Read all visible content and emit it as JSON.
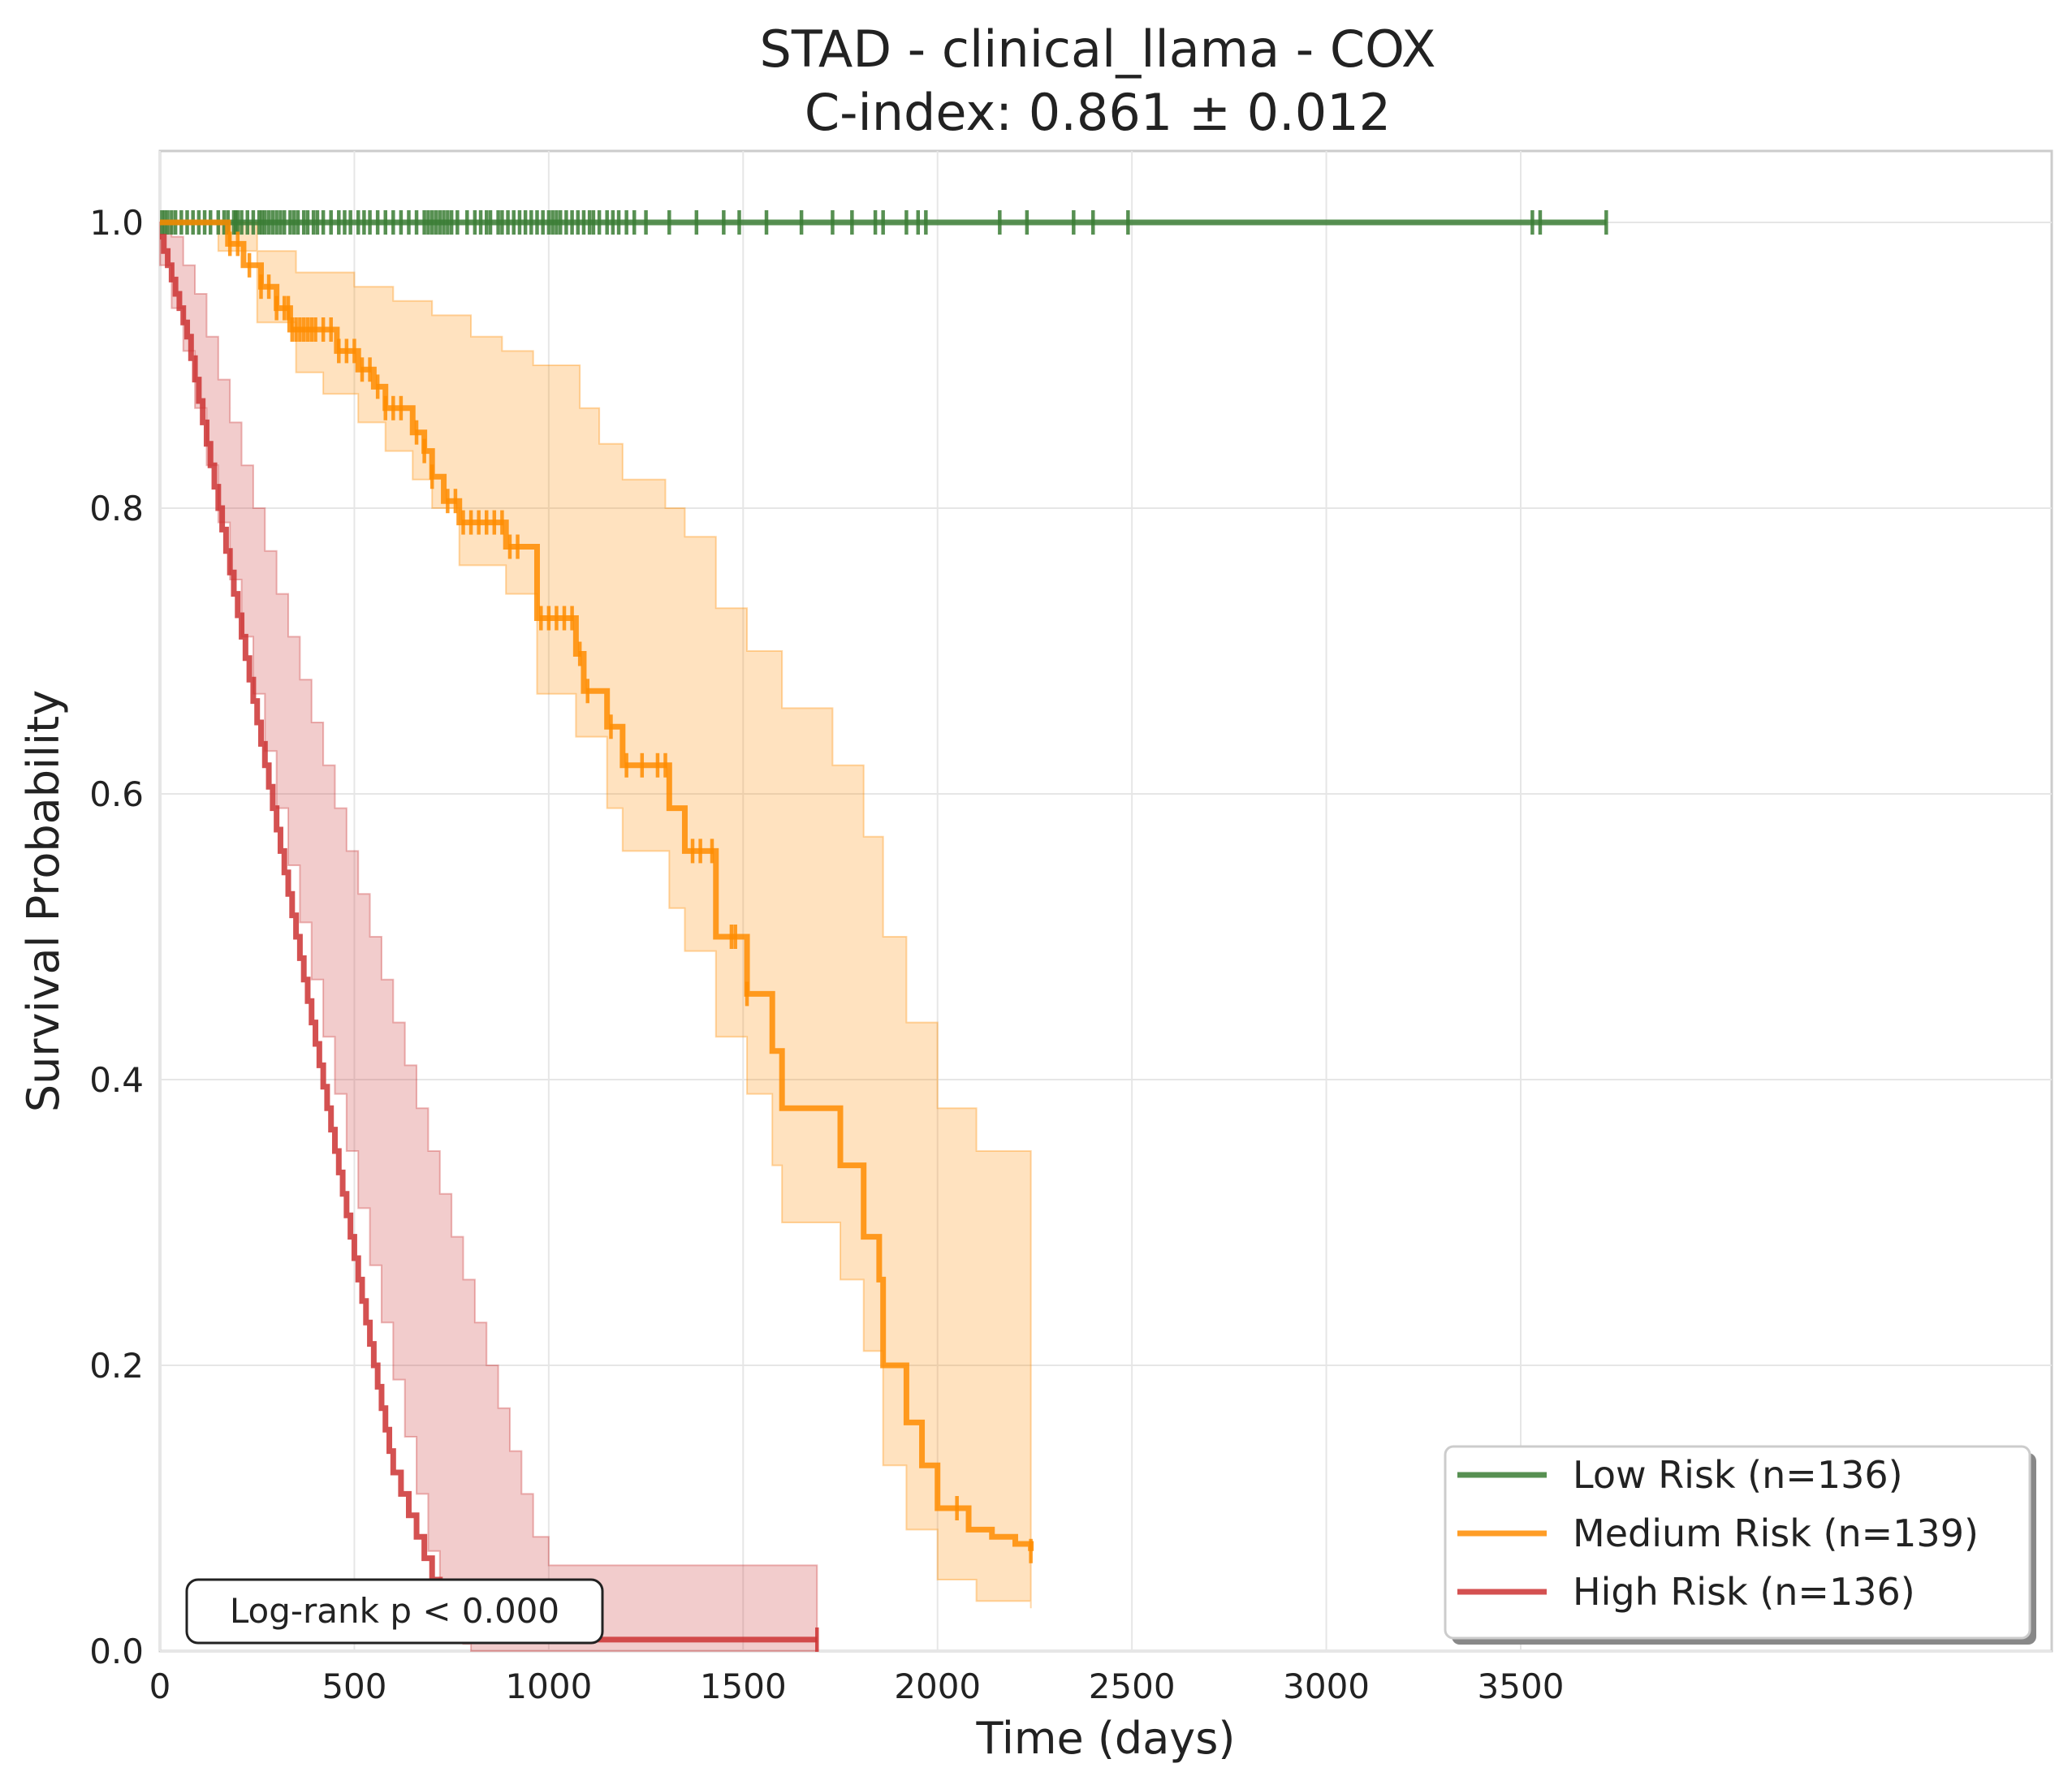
{
  "chart_data": {
    "type": "line",
    "title": "STAD - clinical_llama - COX",
    "subtitle": "C-index: 0.861 ± 0.012",
    "xlabel": "Time (days)",
    "ylabel": "Survival Probability",
    "xlim": [
      0,
      3900
    ],
    "ylim": [
      0.0,
      1.05
    ],
    "xticks": [
      0,
      500,
      1000,
      1500,
      2000,
      2500,
      3000,
      3500
    ],
    "yticks": [
      0.0,
      0.2,
      0.4,
      0.6,
      0.8,
      1.0
    ],
    "xtick_labels": [
      "0",
      "500",
      "1000",
      "1500",
      "2000",
      "2500",
      "3000",
      "3500"
    ],
    "ytick_labels": [
      "0.0",
      "0.2",
      "0.4",
      "0.6",
      "0.8",
      "1.0"
    ],
    "grid": true,
    "legend_position": "lower-right",
    "annotation": "Log-rank p < 0.000",
    "series": [
      {
        "name": "Low Risk (n=136)",
        "color": "#3a7d34",
        "steps": [
          [
            0,
            1.0
          ],
          [
            3720,
            1.0
          ]
        ],
        "ci_upper": [],
        "ci_lower": [],
        "censor": [
          5,
          12,
          20,
          30,
          40,
          55,
          70,
          85,
          100,
          115,
          130,
          150,
          165,
          175,
          190,
          195,
          200,
          210,
          225,
          240,
          255,
          262,
          270,
          280,
          290,
          300,
          310,
          320,
          335,
          345,
          355,
          370,
          380,
          395,
          405,
          420,
          440,
          460,
          475,
          490,
          510,
          525,
          540,
          560,
          580,
          600,
          620,
          640,
          660,
          680,
          690,
          700,
          710,
          720,
          730,
          740,
          750,
          765,
          790,
          810,
          825,
          840,
          850,
          870,
          880,
          895,
          910,
          925,
          940,
          955,
          970,
          985,
          1000,
          1010,
          1020,
          1030,
          1045,
          1060,
          1075,
          1090,
          1105,
          1115,
          1130,
          1150,
          1165,
          1180,
          1200,
          1220,
          1250,
          1310,
          1380,
          1450,
          1490,
          1560,
          1650,
          1730,
          1780,
          1840,
          1860,
          1920,
          1950,
          1970,
          2160,
          2230,
          2350,
          2400,
          2490,
          3530,
          3550,
          3720
        ]
      },
      {
        "name": "Medium Risk (n=139)",
        "color": "#ff8c00",
        "steps": [
          [
            0,
            1.0
          ],
          [
            175,
            0.985
          ],
          [
            200,
            0.985
          ],
          [
            215,
            0.97
          ],
          [
            240,
            0.97
          ],
          [
            260,
            0.955
          ],
          [
            275,
            0.955
          ],
          [
            300,
            0.94
          ],
          [
            320,
            0.94
          ],
          [
            335,
            0.925
          ],
          [
            420,
            0.925
          ],
          [
            455,
            0.91
          ],
          [
            480,
            0.91
          ],
          [
            510,
            0.897
          ],
          [
            540,
            0.897
          ],
          [
            550,
            0.885
          ],
          [
            570,
            0.885
          ],
          [
            580,
            0.87
          ],
          [
            640,
            0.87
          ],
          [
            650,
            0.853
          ],
          [
            670,
            0.853
          ],
          [
            680,
            0.84
          ],
          [
            690,
            0.84
          ],
          [
            700,
            0.822
          ],
          [
            720,
            0.822
          ],
          [
            730,
            0.805
          ],
          [
            755,
            0.805
          ],
          [
            770,
            0.79
          ],
          [
            880,
            0.79
          ],
          [
            890,
            0.773
          ],
          [
            960,
            0.773
          ],
          [
            970,
            0.723
          ],
          [
            1060,
            0.723
          ],
          [
            1070,
            0.698
          ],
          [
            1080,
            0.698
          ],
          [
            1090,
            0.672
          ],
          [
            1130,
            0.672
          ],
          [
            1150,
            0.647
          ],
          [
            1170,
            0.647
          ],
          [
            1190,
            0.62
          ],
          [
            1300,
            0.62
          ],
          [
            1310,
            0.59
          ],
          [
            1330,
            0.59
          ],
          [
            1350,
            0.56
          ],
          [
            1420,
            0.56
          ],
          [
            1430,
            0.5
          ],
          [
            1495,
            0.5
          ],
          [
            1510,
            0.46
          ],
          [
            1570,
            0.46
          ],
          [
            1575,
            0.42
          ],
          [
            1585,
            0.42
          ],
          [
            1600,
            0.38
          ],
          [
            1730,
            0.38
          ],
          [
            1750,
            0.34
          ],
          [
            1800,
            0.34
          ],
          [
            1810,
            0.29
          ],
          [
            1830,
            0.29
          ],
          [
            1850,
            0.26
          ],
          [
            1860,
            0.2
          ],
          [
            1900,
            0.2
          ],
          [
            1920,
            0.16
          ],
          [
            1960,
            0.13
          ],
          [
            2000,
            0.1
          ],
          [
            2080,
            0.085
          ],
          [
            2140,
            0.08
          ],
          [
            2200,
            0.075
          ],
          [
            2240,
            0.07
          ]
        ],
        "ci_upper": [
          [
            0,
            1.0
          ],
          [
            150,
            1.0
          ],
          [
            250,
            0.98
          ],
          [
            350,
            0.965
          ],
          [
            500,
            0.955
          ],
          [
            600,
            0.945
          ],
          [
            700,
            0.935
          ],
          [
            800,
            0.92
          ],
          [
            880,
            0.91
          ],
          [
            960,
            0.9
          ],
          [
            1080,
            0.87
          ],
          [
            1130,
            0.845
          ],
          [
            1190,
            0.82
          ],
          [
            1300,
            0.8
          ],
          [
            1350,
            0.78
          ],
          [
            1430,
            0.73
          ],
          [
            1510,
            0.7
          ],
          [
            1600,
            0.66
          ],
          [
            1730,
            0.62
          ],
          [
            1810,
            0.57
          ],
          [
            1860,
            0.5
          ],
          [
            1920,
            0.44
          ],
          [
            2000,
            0.38
          ],
          [
            2100,
            0.35
          ],
          [
            2240,
            0.34
          ]
        ],
        "ci_lower": [
          [
            0,
            1.0
          ],
          [
            150,
            0.98
          ],
          [
            250,
            0.93
          ],
          [
            350,
            0.895
          ],
          [
            420,
            0.88
          ],
          [
            510,
            0.86
          ],
          [
            580,
            0.84
          ],
          [
            650,
            0.82
          ],
          [
            700,
            0.8
          ],
          [
            770,
            0.76
          ],
          [
            890,
            0.74
          ],
          [
            970,
            0.67
          ],
          [
            1070,
            0.64
          ],
          [
            1150,
            0.59
          ],
          [
            1190,
            0.56
          ],
          [
            1310,
            0.52
          ],
          [
            1350,
            0.49
          ],
          [
            1430,
            0.43
          ],
          [
            1510,
            0.39
          ],
          [
            1575,
            0.34
          ],
          [
            1600,
            0.3
          ],
          [
            1750,
            0.26
          ],
          [
            1810,
            0.21
          ],
          [
            1860,
            0.13
          ],
          [
            1920,
            0.085
          ],
          [
            2000,
            0.05
          ],
          [
            2100,
            0.035
          ],
          [
            2240,
            0.03
          ]
        ],
        "censor": [
          180,
          200,
          230,
          260,
          280,
          300,
          320,
          330,
          340,
          350,
          360,
          370,
          380,
          390,
          400,
          420,
          440,
          460,
          480,
          500,
          520,
          540,
          560,
          580,
          600,
          620,
          660,
          680,
          700,
          740,
          760,
          780,
          800,
          820,
          840,
          860,
          880,
          900,
          920,
          980,
          1000,
          1020,
          1040,
          1060,
          1080,
          1100,
          1160,
          1200,
          1240,
          1280,
          1300,
          1370,
          1390,
          1420,
          1470,
          1480,
          1510,
          2050,
          2240
        ]
      },
      {
        "name": "High Risk (n=136)",
        "color": "#cc3333",
        "steps": [
          [
            0,
            0.99
          ],
          [
            10,
            0.98
          ],
          [
            20,
            0.97
          ],
          [
            30,
            0.96
          ],
          [
            40,
            0.95
          ],
          [
            50,
            0.94
          ],
          [
            60,
            0.93
          ],
          [
            70,
            0.92
          ],
          [
            80,
            0.905
          ],
          [
            90,
            0.89
          ],
          [
            100,
            0.875
          ],
          [
            110,
            0.86
          ],
          [
            120,
            0.845
          ],
          [
            130,
            0.83
          ],
          [
            140,
            0.815
          ],
          [
            150,
            0.8
          ],
          [
            160,
            0.785
          ],
          [
            170,
            0.77
          ],
          [
            180,
            0.755
          ],
          [
            190,
            0.74
          ],
          [
            200,
            0.725
          ],
          [
            210,
            0.71
          ],
          [
            220,
            0.695
          ],
          [
            230,
            0.68
          ],
          [
            240,
            0.665
          ],
          [
            250,
            0.65
          ],
          [
            260,
            0.635
          ],
          [
            270,
            0.62
          ],
          [
            280,
            0.605
          ],
          [
            290,
            0.59
          ],
          [
            300,
            0.575
          ],
          [
            310,
            0.56
          ],
          [
            320,
            0.545
          ],
          [
            330,
            0.53
          ],
          [
            340,
            0.515
          ],
          [
            350,
            0.5
          ],
          [
            360,
            0.485
          ],
          [
            370,
            0.47
          ],
          [
            380,
            0.455
          ],
          [
            390,
            0.44
          ],
          [
            400,
            0.425
          ],
          [
            410,
            0.41
          ],
          [
            420,
            0.395
          ],
          [
            430,
            0.38
          ],
          [
            440,
            0.365
          ],
          [
            450,
            0.35
          ],
          [
            460,
            0.335
          ],
          [
            470,
            0.32
          ],
          [
            480,
            0.305
          ],
          [
            490,
            0.29
          ],
          [
            500,
            0.275
          ],
          [
            510,
            0.26
          ],
          [
            520,
            0.245
          ],
          [
            530,
            0.23
          ],
          [
            540,
            0.215
          ],
          [
            550,
            0.2
          ],
          [
            560,
            0.185
          ],
          [
            570,
            0.17
          ],
          [
            580,
            0.155
          ],
          [
            590,
            0.14
          ],
          [
            600,
            0.125
          ],
          [
            620,
            0.11
          ],
          [
            640,
            0.095
          ],
          [
            660,
            0.08
          ],
          [
            680,
            0.065
          ],
          [
            700,
            0.05
          ],
          [
            720,
            0.04
          ],
          [
            740,
            0.03
          ],
          [
            760,
            0.02
          ],
          [
            780,
            0.012
          ],
          [
            800,
            0.01
          ],
          [
            820,
            0.009
          ],
          [
            840,
            0.008
          ],
          [
            1200,
            0.008
          ],
          [
            1690,
            0.008
          ]
        ],
        "ci_upper": [
          [
            0,
            1.0
          ],
          [
            30,
            0.99
          ],
          [
            60,
            0.97
          ],
          [
            90,
            0.95
          ],
          [
            120,
            0.92
          ],
          [
            150,
            0.89
          ],
          [
            180,
            0.86
          ],
          [
            210,
            0.83
          ],
          [
            240,
            0.8
          ],
          [
            270,
            0.77
          ],
          [
            300,
            0.74
          ],
          [
            330,
            0.71
          ],
          [
            360,
            0.68
          ],
          [
            390,
            0.65
          ],
          [
            420,
            0.62
          ],
          [
            450,
            0.59
          ],
          [
            480,
            0.56
          ],
          [
            510,
            0.53
          ],
          [
            540,
            0.5
          ],
          [
            570,
            0.47
          ],
          [
            600,
            0.44
          ],
          [
            630,
            0.41
          ],
          [
            660,
            0.38
          ],
          [
            690,
            0.35
          ],
          [
            720,
            0.32
          ],
          [
            750,
            0.29
          ],
          [
            780,
            0.26
          ],
          [
            810,
            0.23
          ],
          [
            840,
            0.2
          ],
          [
            870,
            0.17
          ],
          [
            900,
            0.14
          ],
          [
            930,
            0.11
          ],
          [
            960,
            0.08
          ],
          [
            1000,
            0.06
          ],
          [
            1690,
            0.06
          ]
        ],
        "ci_lower": [
          [
            0,
            0.97
          ],
          [
            30,
            0.94
          ],
          [
            60,
            0.91
          ],
          [
            90,
            0.87
          ],
          [
            120,
            0.83
          ],
          [
            150,
            0.79
          ],
          [
            180,
            0.75
          ],
          [
            210,
            0.71
          ],
          [
            240,
            0.67
          ],
          [
            270,
            0.63
          ],
          [
            300,
            0.59
          ],
          [
            330,
            0.55
          ],
          [
            360,
            0.51
          ],
          [
            390,
            0.47
          ],
          [
            420,
            0.43
          ],
          [
            450,
            0.39
          ],
          [
            480,
            0.35
          ],
          [
            510,
            0.31
          ],
          [
            540,
            0.27
          ],
          [
            570,
            0.23
          ],
          [
            600,
            0.19
          ],
          [
            630,
            0.15
          ],
          [
            660,
            0.11
          ],
          [
            690,
            0.07
          ],
          [
            720,
            0.04
          ],
          [
            750,
            0.02
          ],
          [
            780,
            0.005
          ],
          [
            800,
            0.0
          ],
          [
            1690,
            0.0
          ]
        ],
        "censor": [
          1690
        ]
      }
    ]
  }
}
